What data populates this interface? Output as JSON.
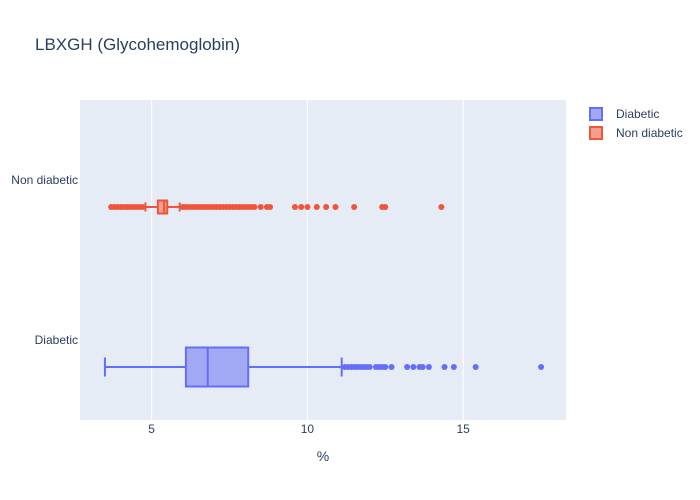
{
  "chart_data": {
    "type": "box",
    "orientation": "horizontal",
    "title": "LBXGH (Glycohemoglobin)",
    "xlabel": "%",
    "ylabel": "",
    "xlim": [
      2.7,
      18.3
    ],
    "x_ticks": [
      5,
      10,
      15
    ],
    "categories": [
      "Diabetic",
      "Non diabetic"
    ],
    "grid": true,
    "legend_position": "top-right",
    "series": [
      {
        "name": "Diabetic",
        "color": "#636efa",
        "fill": "#a3a8f3",
        "whisker_low": 3.5,
        "q1": 6.1,
        "median": 6.8,
        "q3": 8.1,
        "whisker_high": 11.1,
        "outliers_low": [],
        "outliers_high": [
          11.2,
          11.3,
          11.4,
          11.5,
          11.6,
          11.7,
          11.8,
          11.9,
          12.0,
          12.2,
          12.3,
          12.4,
          12.5,
          12.7,
          13.2,
          13.4,
          13.6,
          13.7,
          13.9,
          14.4,
          14.7,
          15.4,
          17.5
        ]
      },
      {
        "name": "Non diabetic",
        "color": "#ef553b",
        "fill": "#f5a08f",
        "whisker_low": 4.8,
        "q1": 5.2,
        "median": 5.4,
        "q3": 5.5,
        "whisker_high": 5.9,
        "outliers_low": [
          3.7,
          3.8,
          3.9,
          4.0,
          4.1,
          4.2,
          4.3,
          4.4,
          4.5,
          4.6,
          4.7
        ],
        "outliers_high": [
          6.0,
          6.1,
          6.2,
          6.3,
          6.4,
          6.5,
          6.6,
          6.7,
          6.8,
          6.9,
          7.0,
          7.1,
          7.2,
          7.3,
          7.4,
          7.5,
          7.6,
          7.7,
          7.8,
          7.9,
          8.0,
          8.1,
          8.2,
          8.3,
          8.5,
          8.7,
          8.8,
          9.6,
          9.8,
          10.0,
          10.3,
          10.6,
          10.9,
          11.5,
          12.4,
          12.5,
          14.3
        ]
      }
    ]
  }
}
